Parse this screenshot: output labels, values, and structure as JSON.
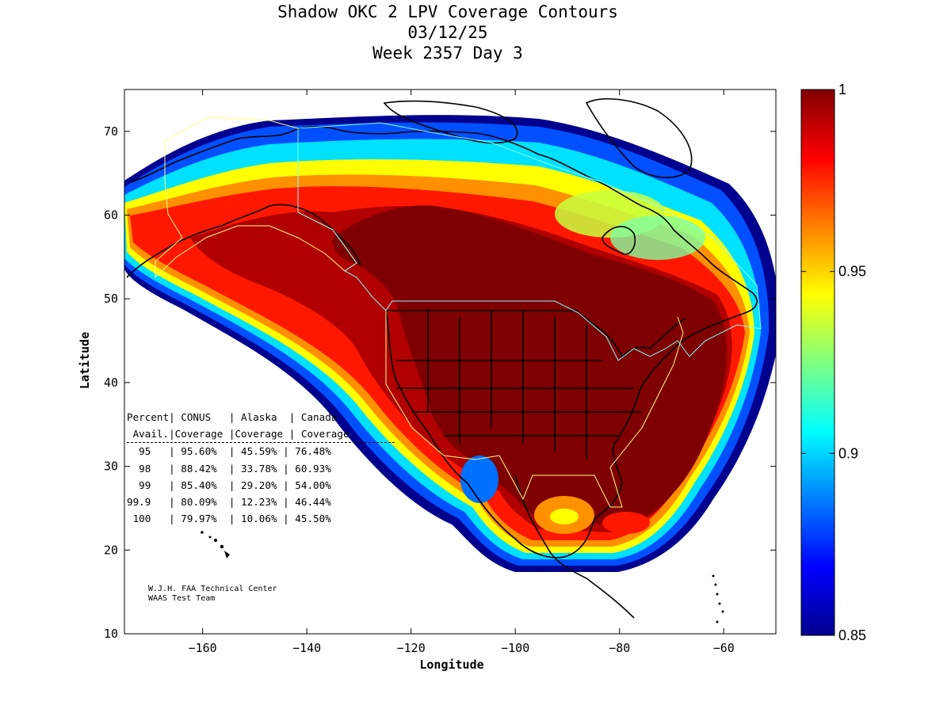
{
  "title": {
    "line1": "Shadow OKC 2 LPV Coverage Contours",
    "line2": "03/12/25",
    "line3": "Week 2357 Day 3"
  },
  "axes": {
    "xlabel": "Longitude",
    "ylabel": "Latitude",
    "xlim": [
      -175,
      -50
    ],
    "ylim": [
      10,
      75
    ],
    "xticks": [
      -160,
      -140,
      -120,
      -100,
      -80,
      -60
    ],
    "yticks": [
      10,
      20,
      30,
      40,
      50,
      60,
      70
    ]
  },
  "colorbar": {
    "range": [
      0.85,
      1
    ],
    "ticks": [
      "1",
      "0.95",
      "0.9",
      "0.85"
    ],
    "colormap": "jet"
  },
  "coverage_table": {
    "header1": "Percent| CONUS   | Alaska  | Canada",
    "header2": " Avail.|Coverage |Coverage | Coverage",
    "rows": [
      "  95   | 95.60%  | 45.59% | 76.48%",
      "  98   | 88.42%  | 33.78% | 60.93%",
      "  99   | 85.40%  | 29.20% | 54.00%",
      "99.9   | 80.09%  | 12.23% | 46.44%",
      " 100   | 79.97%  | 10.06% | 45.50%"
    ]
  },
  "credit": {
    "line1": "W.J.H. FAA Technical Center",
    "line2": "WAAS Test Team"
  },
  "colors": {
    "max_coverage": "#7f0000",
    "high": "#ff2000",
    "mid": "#ffff00",
    "cyan": "#00ffff",
    "low": "#00008f",
    "alaska_boundary": "#ffff80",
    "canada_boundary": "#80ffff"
  }
}
